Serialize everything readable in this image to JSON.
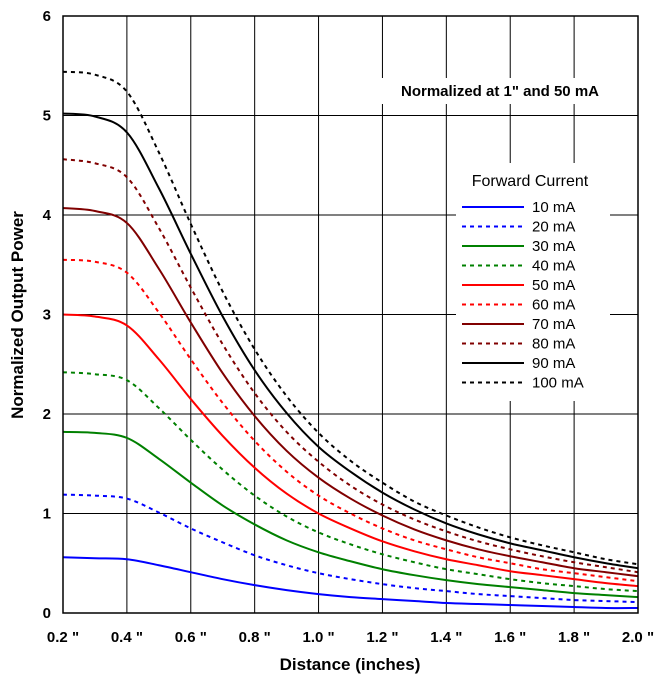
{
  "chart_data": {
    "type": "line",
    "xlabel": "Distance (inches)",
    "ylabel": "Normalized Output Power",
    "xlim": [
      0.2,
      2.0
    ],
    "ylim": [
      0,
      6
    ],
    "x_ticks": [
      0.2,
      0.4,
      0.6,
      0.8,
      1.0,
      1.2,
      1.4,
      1.6,
      1.8,
      2.0
    ],
    "x_tick_labels": [
      "0.2 \"",
      "0.4 \"",
      "0.6 \"",
      "0.8 \"",
      "1.0 \"",
      "1.2 \"",
      "1.4 \"",
      "1.6 \"",
      "1.8 \"",
      "2.0 \""
    ],
    "y_ticks": [
      0,
      1,
      2,
      3,
      4,
      5,
      6
    ],
    "y_tick_labels": [
      "0",
      "1",
      "2",
      "3",
      "4",
      "5",
      "6"
    ],
    "grid": true,
    "annotation": "Normalized at 1\" and 50 mA",
    "legend_title": "Forward Current",
    "legend_placement": "right",
    "x": [
      0.2,
      0.3,
      0.4,
      0.5,
      0.6,
      0.7,
      0.8,
      0.9,
      1.0,
      1.1,
      1.2,
      1.3,
      1.4,
      1.5,
      1.6,
      1.7,
      1.8,
      1.9,
      2.0
    ],
    "series": [
      {
        "name": "10 mA",
        "color": "#0000ff",
        "dash": false,
        "values": [
          0.56,
          0.55,
          0.54,
          0.48,
          0.41,
          0.34,
          0.28,
          0.23,
          0.19,
          0.16,
          0.14,
          0.12,
          0.1,
          0.09,
          0.08,
          0.07,
          0.06,
          0.05,
          0.05
        ]
      },
      {
        "name": "20 mA",
        "color": "#0000ff",
        "dash": true,
        "values": [
          1.19,
          1.18,
          1.15,
          1.01,
          0.85,
          0.71,
          0.58,
          0.48,
          0.4,
          0.34,
          0.29,
          0.25,
          0.22,
          0.19,
          0.17,
          0.15,
          0.13,
          0.12,
          0.11
        ]
      },
      {
        "name": "30 mA",
        "color": "#008000",
        "dash": false,
        "values": [
          1.82,
          1.81,
          1.76,
          1.55,
          1.31,
          1.08,
          0.89,
          0.73,
          0.61,
          0.52,
          0.44,
          0.38,
          0.33,
          0.29,
          0.26,
          0.23,
          0.2,
          0.18,
          0.16
        ]
      },
      {
        "name": "40 mA",
        "color": "#008000",
        "dash": true,
        "values": [
          2.42,
          2.4,
          2.34,
          2.06,
          1.74,
          1.44,
          1.18,
          0.97,
          0.81,
          0.69,
          0.59,
          0.51,
          0.44,
          0.39,
          0.34,
          0.3,
          0.27,
          0.24,
          0.22
        ]
      },
      {
        "name": "50 mA",
        "color": "#ff0000",
        "dash": false,
        "values": [
          3.0,
          2.98,
          2.89,
          2.55,
          2.15,
          1.78,
          1.46,
          1.2,
          1.0,
          0.85,
          0.72,
          0.62,
          0.54,
          0.48,
          0.42,
          0.38,
          0.34,
          0.3,
          0.27
        ]
      },
      {
        "name": "60 mA",
        "color": "#ff0000",
        "dash": true,
        "values": [
          3.55,
          3.53,
          3.42,
          3.02,
          2.55,
          2.11,
          1.73,
          1.42,
          1.18,
          1.0,
          0.85,
          0.73,
          0.64,
          0.56,
          0.5,
          0.44,
          0.4,
          0.36,
          0.32
        ]
      },
      {
        "name": "70 mA",
        "color": "#800000",
        "dash": false,
        "values": [
          4.07,
          4.04,
          3.92,
          3.46,
          2.92,
          2.41,
          1.98,
          1.63,
          1.36,
          1.15,
          0.98,
          0.84,
          0.73,
          0.64,
          0.57,
          0.51,
          0.45,
          0.41,
          0.37
        ]
      },
      {
        "name": "80 mA",
        "color": "#800000",
        "dash": true,
        "values": [
          4.56,
          4.52,
          4.38,
          3.87,
          3.27,
          2.7,
          2.21,
          1.82,
          1.52,
          1.28,
          1.09,
          0.94,
          0.82,
          0.72,
          0.64,
          0.57,
          0.51,
          0.46,
          0.41
        ]
      },
      {
        "name": "90 mA",
        "color": "#000000",
        "dash": false,
        "values": [
          5.02,
          4.99,
          4.83,
          4.27,
          3.61,
          2.98,
          2.44,
          2.01,
          1.67,
          1.42,
          1.21,
          1.04,
          0.9,
          0.79,
          0.7,
          0.63,
          0.56,
          0.5,
          0.45
        ]
      },
      {
        "name": "100 mA",
        "color": "#000000",
        "dash": true,
        "values": [
          5.44,
          5.41,
          5.24,
          4.63,
          3.91,
          3.23,
          2.65,
          2.18,
          1.81,
          1.53,
          1.31,
          1.12,
          0.98,
          0.86,
          0.76,
          0.68,
          0.61,
          0.54,
          0.49
        ]
      }
    ]
  }
}
